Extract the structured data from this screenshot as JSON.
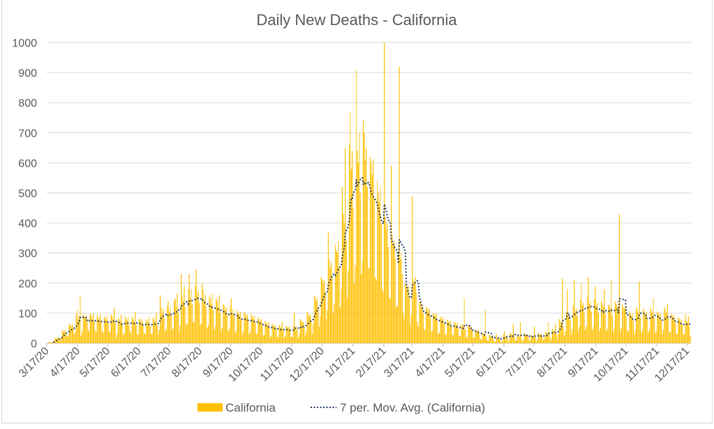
{
  "chart_data": {
    "type": "bar",
    "title": "Daily New Deaths - California",
    "xlabel": "",
    "ylabel": "",
    "start_date": "2020-03-17",
    "ylim": [
      0,
      1000
    ],
    "yticks": [
      0,
      100,
      200,
      300,
      400,
      500,
      600,
      700,
      800,
      900,
      1000
    ],
    "xticks": [
      "3/17/20",
      "4/17/20",
      "5/17/20",
      "6/17/20",
      "7/17/20",
      "8/17/20",
      "9/17/20",
      "10/17/20",
      "11/17/20",
      "12/17/20",
      "1/17/21",
      "2/17/21",
      "3/17/21",
      "4/17/21",
      "5/17/21",
      "6/17/21",
      "7/17/21",
      "8/17/21",
      "9/17/21",
      "10/17/21",
      "11/17/21",
      "12/17/21"
    ],
    "grid": true,
    "legend_position": "bottom",
    "series": [
      {
        "name": "California",
        "type": "bar",
        "color": "#FFC000",
        "values": [
          1,
          3,
          4,
          3,
          4,
          3,
          2,
          8,
          18,
          17,
          16,
          20,
          15,
          9,
          18,
          45,
          40,
          38,
          46,
          35,
          22,
          25,
          65,
          60,
          55,
          65,
          50,
          30,
          35,
          95,
          110,
          80,
          90,
          160,
          25,
          40,
          100,
          90,
          85,
          95,
          75,
          45,
          38,
          98,
          92,
          80,
          100,
          72,
          44,
          36,
          94,
          86,
          80,
          95,
          70,
          42,
          35,
          90,
          85,
          78,
          92,
          68,
          40,
          36,
          95,
          90,
          80,
          118,
          70,
          18,
          32,
          85,
          80,
          72,
          95,
          62,
          30,
          32,
          90,
          82,
          75,
          88,
          60,
          38,
          32,
          88,
          80,
          72,
          105,
          62,
          30,
          30,
          82,
          78,
          70,
          80,
          60,
          35,
          30,
          80,
          75,
          70,
          88,
          58,
          30,
          32,
          85,
          80,
          72,
          100,
          60,
          30,
          45,
          160,
          120,
          100,
          115,
          85,
          40,
          48,
          125,
          140,
          105,
          120,
          95,
          45,
          50,
          140,
          150,
          120,
          165,
          100,
          40,
          60,
          230,
          160,
          140,
          190,
          120,
          60,
          65,
          180,
          230,
          150,
          180,
          130,
          70,
          70,
          190,
          245,
          160,
          175,
          135,
          60,
          65,
          200,
          180,
          140,
          160,
          120,
          50,
          60,
          160,
          150,
          130,
          165,
          110,
          45,
          55,
          150,
          140,
          120,
          160,
          100,
          40,
          50,
          130,
          125,
          110,
          120,
          95,
          40,
          48,
          125,
          150,
          100,
          115,
          90,
          35,
          42,
          110,
          100,
          95,
          105,
          80,
          30,
          40,
          105,
          100,
          88,
          95,
          75,
          30,
          38,
          98,
          90,
          82,
          92,
          70,
          30,
          32,
          85,
          80,
          72,
          80,
          60,
          25,
          28,
          72,
          68,
          60,
          70,
          52,
          20,
          25,
          65,
          60,
          55,
          62,
          48,
          20,
          22,
          60,
          55,
          50,
          70,
          42,
          18,
          22,
          58,
          55,
          50,
          56,
          42,
          20,
          22,
          60,
          100,
          50,
          55,
          45,
          18,
          30,
          80,
          75,
          68,
          72,
          55,
          25,
          40,
          105,
          100,
          90,
          95,
          75,
          30,
          65,
          160,
          155,
          140,
          150,
          120,
          55,
          90,
          220,
          210,
          200,
          210,
          170,
          80,
          110,
          370,
          280,
          250,
          270,
          220,
          100,
          130,
          330,
          310,
          300,
          340,
          250,
          120,
          180,
          520,
          430,
          400,
          650,
          340,
          150,
          240,
          660,
          770,
          580,
          640,
          450,
          200,
          260,
          910,
          640,
          600,
          700,
          500,
          230,
          270,
          740,
          700,
          610,
          650,
          520,
          250,
          250,
          620,
          600,
          560,
          610,
          480,
          220,
          210,
          540,
          500,
          470,
          520,
          400,
          180,
          170,
          1000,
          420,
          380,
          400,
          320,
          150,
          150,
          590,
          360,
          330,
          340,
          280,
          120,
          125,
          300,
          920,
          280,
          300,
          230,
          100,
          80,
          200,
          190,
          180,
          190,
          150,
          60,
          95,
          490,
          210,
          200,
          220,
          170,
          70,
          55,
          140,
          135,
          120,
          130,
          100,
          45,
          48,
          120,
          115,
          105,
          115,
          90,
          40,
          40,
          100,
          95,
          90,
          100,
          75,
          30,
          35,
          90,
          85,
          78,
          88,
          65,
          28,
          30,
          78,
          72,
          68,
          75,
          55,
          25,
          28,
          70,
          68,
          60,
          68,
          50,
          22,
          25,
          65,
          60,
          55,
          150,
          45,
          18,
          22,
          60,
          55,
          50,
          55,
          42,
          18,
          18,
          45,
          42,
          40,
          45,
          32,
          15,
          12,
          35,
          30,
          28,
          110,
          22,
          8,
          10,
          28,
          25,
          22,
          25,
          18,
          6,
          5,
          30,
          18,
          15,
          20,
          12,
          3,
          8,
          30,
          40,
          22,
          28,
          18,
          5,
          12,
          35,
          30,
          28,
          65,
          22,
          8,
          10,
          28,
          25,
          22,
          70,
          18,
          6,
          12,
          35,
          30,
          28,
          30,
          22,
          8,
          10,
          28,
          25,
          22,
          55,
          18,
          5,
          12,
          35,
          30,
          28,
          30,
          22,
          10,
          15,
          40,
          36,
          34,
          70,
          28,
          10,
          18,
          48,
          42,
          40,
          65,
          32,
          12,
          30,
          80,
          75,
          68,
          215,
          55,
          25,
          40,
          105,
          180,
          90,
          95,
          75,
          30,
          48,
          125,
          210,
          105,
          115,
          90,
          40,
          55,
          145,
          200,
          125,
          135,
          100,
          45,
          58,
          155,
          220,
          130,
          140,
          105,
          45,
          55,
          145,
          190,
          125,
          135,
          100,
          40,
          52,
          140,
          130,
          120,
          180,
          98,
          40,
          50,
          130,
          125,
          115,
          210,
          92,
          40,
          52,
          140,
          130,
          120,
          125,
          430,
          40,
          50,
          130,
          120,
          115,
          120,
          90,
          40,
          40,
          105,
          100,
          90,
          100,
          75,
          30,
          45,
          120,
          110,
          100,
          205,
          85,
          35,
          42,
          115,
          105,
          95,
          105,
          80,
          35,
          45,
          120,
          110,
          100,
          150,
          85,
          35,
          40,
          105,
          100,
          90,
          100,
          75,
          30,
          45,
          120,
          110,
          100,
          130,
          85,
          35,
          38,
          98,
          92,
          85,
          95,
          70,
          30,
          32,
          85,
          80,
          72,
          80,
          60,
          28,
          30,
          95,
          75,
          70,
          90,
          55,
          25
        ]
      },
      {
        "name": "7 per. Mov. Avg. (California)",
        "type": "line",
        "style": "dotted",
        "color": "#203864",
        "period": 7
      }
    ]
  }
}
